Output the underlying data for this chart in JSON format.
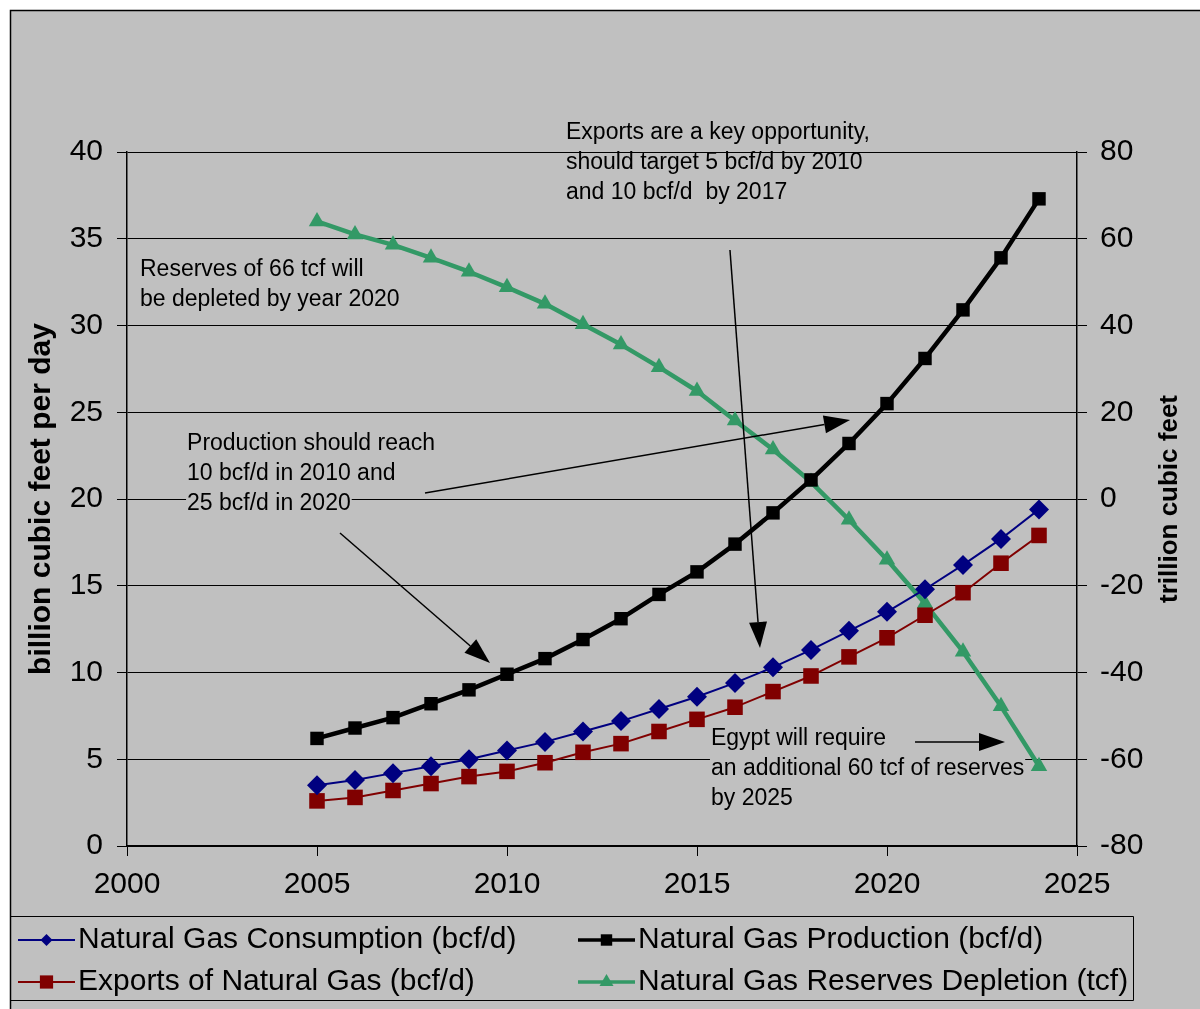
{
  "chart_data": {
    "type": "line",
    "x": [
      2005,
      2006,
      2007,
      2008,
      2009,
      2010,
      2011,
      2012,
      2013,
      2014,
      2015,
      2016,
      2017,
      2018,
      2019,
      2020,
      2021,
      2022,
      2023,
      2024
    ],
    "series": [
      {
        "name": "Natural Gas Consumption (bcf/d)",
        "color": "#000080",
        "marker": "diamond",
        "values": [
          3.5,
          3.8,
          4.2,
          4.6,
          5.0,
          5.5,
          6.0,
          6.6,
          7.2,
          7.9,
          8.6,
          9.4,
          10.3,
          11.3,
          12.4,
          13.5,
          14.8,
          16.2,
          17.7,
          19.4
        ]
      },
      {
        "name": "Natural Gas Production (bcf/d)",
        "color": "#000000",
        "marker": "square",
        "values": [
          6.2,
          6.8,
          7.4,
          8.2,
          9.0,
          9.9,
          10.8,
          11.9,
          13.1,
          14.5,
          15.8,
          17.4,
          19.2,
          21.1,
          23.2,
          25.5,
          28.1,
          30.9,
          33.9,
          37.3
        ]
      },
      {
        "name": "Exports of Natural Gas (bcf/d)",
        "color": "#800000",
        "marker": "square",
        "values": [
          2.6,
          2.8,
          3.2,
          3.6,
          4.0,
          4.3,
          4.8,
          5.4,
          5.9,
          6.6,
          7.3,
          8.0,
          8.9,
          9.8,
          10.9,
          12.0,
          13.3,
          14.6,
          16.3,
          17.9
        ]
      },
      {
        "name": "Natural Gas Reserves Depletion (tcf)",
        "color": "#339966",
        "marker": "triangle",
        "axis": "y2",
        "values": [
          64,
          61,
          58.6,
          55.6,
          52.4,
          48.8,
          45,
          40.3,
          35.6,
          30.4,
          24.9,
          18.1,
          11.4,
          3.9,
          -4.8,
          -14,
          -24.1,
          -35.2,
          -47.8,
          -61.6
        ]
      }
    ],
    "ylabel": "billion cubic feet per day",
    "y2label": "trillion cubic feet",
    "xlim": [
      2000,
      2025
    ],
    "xticks": [
      2000,
      2005,
      2010,
      2015,
      2020,
      2025
    ],
    "ylim": [
      0,
      40
    ],
    "yticks": [
      0,
      5,
      10,
      15,
      20,
      25,
      30,
      35,
      40
    ],
    "y2lim": [
      -80,
      80
    ],
    "y2ticks": [
      -80,
      -60,
      -40,
      -20,
      0,
      20,
      40,
      60,
      80
    ],
    "grid": "y",
    "legend": "bottom",
    "annotations": [
      "Exports are a key opportunity,\nshould target 5 bcf/d by 2010\nand 10 bcf/d  by 2017",
      "Reserves of 66 tcf will\nbe depleted by year 2020",
      "Production should reach\n10 bcf/d in 2010 and\n25 bcf/d in 2020",
      "Egypt will require\nan additional 60 tcf of reserves\nby 2025"
    ]
  }
}
